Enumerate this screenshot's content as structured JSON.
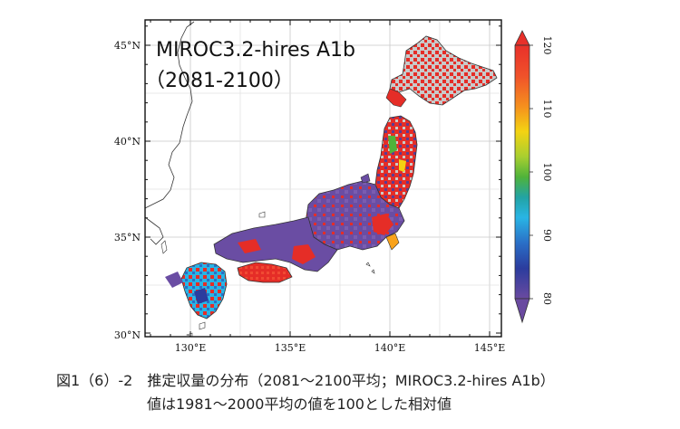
{
  "map": {
    "title_line1": "MIROC3.2-hires A1b",
    "title_line2": "（2081-2100）",
    "lat_labels": [
      "45°N",
      "40°N",
      "35°N",
      "30°N"
    ],
    "lon_labels": [
      "130°E",
      "135°E",
      "140°E",
      "145°E"
    ],
    "lat_values": [
      45,
      40,
      35,
      30
    ],
    "lon_values": [
      130,
      135,
      140,
      145
    ],
    "extent": {
      "lon_min": 128,
      "lon_max": 146,
      "lat_min": 30,
      "lat_max": 46
    }
  },
  "colorbar": {
    "labels": [
      "120",
      "110",
      "100",
      "90",
      "80"
    ],
    "values": [
      120,
      110,
      100,
      90,
      80
    ],
    "range": [
      80,
      120
    ],
    "colors": [
      "#e8302a",
      "#f36a21",
      "#f9a21a",
      "#f4d312",
      "#a8cf30",
      "#4fb33a",
      "#22a3a4",
      "#29b5e5",
      "#2a6fc7",
      "#2b3c9e",
      "#5b3c94",
      "#7a4fa6"
    ]
  },
  "caption": {
    "line1": "図1（6）-2　推定収量の分布（2081～2100平均；MIROC3.2-hires A1b）",
    "line2": "値は1981～2000平均の値を100とした相対値"
  }
}
